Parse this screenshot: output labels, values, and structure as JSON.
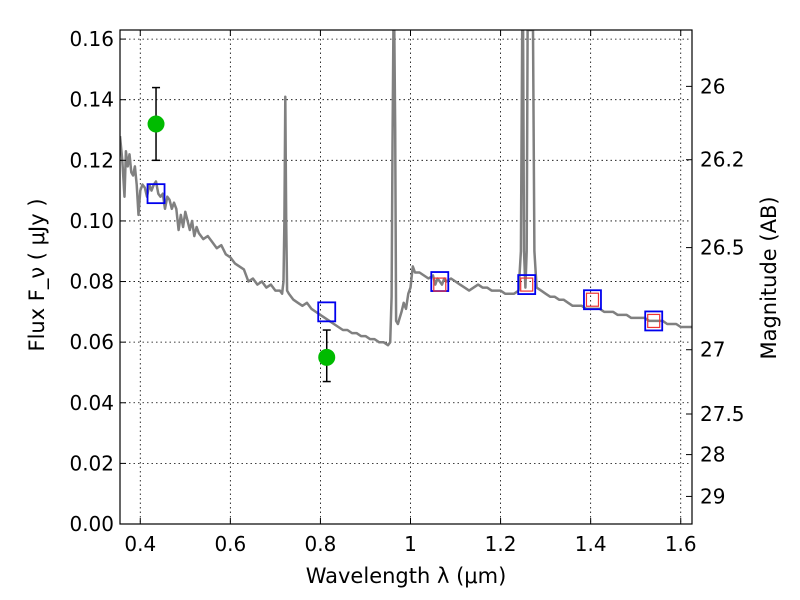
{
  "chart_data": {
    "type": "scatter",
    "title": "",
    "xlabel": "Wavelength  λ (μm)",
    "ylabel": "Flux  F_ν  ( μJy )",
    "ylabel_right": "Magnitude (AB)",
    "xlim": [
      0.355,
      1.625
    ],
    "ylim": [
      0.0,
      0.163
    ],
    "grid": true,
    "x_ticks": [
      0.4,
      0.6,
      0.8,
      1.0,
      1.2,
      1.4,
      1.6
    ],
    "x_tick_labels": [
      "0.4",
      "0.6",
      "0.8",
      "1",
      "1.2",
      "1.4",
      "1.6"
    ],
    "y_ticks": [
      0.0,
      0.02,
      0.04,
      0.06,
      0.08,
      0.1,
      0.12,
      0.14,
      0.16
    ],
    "y_tick_labels": [
      "0.00",
      "0.02",
      "0.04",
      "0.06",
      "0.08",
      "0.10",
      "0.12",
      "0.14",
      "0.16"
    ],
    "right_ticks": [
      {
        "label": "26",
        "flux": 0.1444
      },
      {
        "label": "26.2",
        "flux": 0.1202
      },
      {
        "label": "26.5",
        "flux": 0.0912
      },
      {
        "label": "27",
        "flux": 0.0575
      },
      {
        "label": "27.5",
        "flux": 0.0363
      },
      {
        "label": "28",
        "flux": 0.0229
      },
      {
        "label": "29",
        "flux": 0.0091
      }
    ],
    "series": [
      {
        "name": "model spectrum",
        "kind": "line",
        "color": "#808080",
        "points": [
          [
            0.355,
            0.128
          ],
          [
            0.36,
            0.12
          ],
          [
            0.365,
            0.108
          ],
          [
            0.368,
            0.123
          ],
          [
            0.372,
            0.118
          ],
          [
            0.376,
            0.122
          ],
          [
            0.38,
            0.116
          ],
          [
            0.384,
            0.115
          ],
          [
            0.388,
            0.118
          ],
          [
            0.392,
            0.112
          ],
          [
            0.396,
            0.102
          ],
          [
            0.4,
            0.11
          ],
          [
            0.405,
            0.112
          ],
          [
            0.41,
            0.111
          ],
          [
            0.415,
            0.108
          ],
          [
            0.42,
            0.112
          ],
          [
            0.425,
            0.11
          ],
          [
            0.43,
            0.112
          ],
          [
            0.435,
            0.113
          ],
          [
            0.44,
            0.109
          ],
          [
            0.445,
            0.108
          ],
          [
            0.45,
            0.109
          ],
          [
            0.455,
            0.104
          ],
          [
            0.46,
            0.108
          ],
          [
            0.465,
            0.107
          ],
          [
            0.47,
            0.104
          ],
          [
            0.475,
            0.106
          ],
          [
            0.48,
            0.104
          ],
          [
            0.485,
            0.097
          ],
          [
            0.49,
            0.102
          ],
          [
            0.495,
            0.098
          ],
          [
            0.5,
            0.103
          ],
          [
            0.505,
            0.1
          ],
          [
            0.51,
            0.097
          ],
          [
            0.515,
            0.1
          ],
          [
            0.52,
            0.095
          ],
          [
            0.525,
            0.098
          ],
          [
            0.53,
            0.096
          ],
          [
            0.54,
            0.094
          ],
          [
            0.55,
            0.095
          ],
          [
            0.56,
            0.093
          ],
          [
            0.57,
            0.091
          ],
          [
            0.58,
            0.092
          ],
          [
            0.59,
            0.089
          ],
          [
            0.6,
            0.088
          ],
          [
            0.61,
            0.086
          ],
          [
            0.62,
            0.085
          ],
          [
            0.63,
            0.084
          ],
          [
            0.64,
            0.08
          ],
          [
            0.65,
            0.081
          ],
          [
            0.66,
            0.079
          ],
          [
            0.67,
            0.08
          ],
          [
            0.68,
            0.078
          ],
          [
            0.69,
            0.079
          ],
          [
            0.7,
            0.077
          ],
          [
            0.71,
            0.077
          ],
          [
            0.715,
            0.076
          ],
          [
            0.718,
            0.08
          ],
          [
            0.72,
            0.1
          ],
          [
            0.722,
            0.141
          ],
          [
            0.724,
            0.1
          ],
          [
            0.726,
            0.077
          ],
          [
            0.73,
            0.076
          ],
          [
            0.74,
            0.074
          ],
          [
            0.75,
            0.073
          ],
          [
            0.76,
            0.072
          ],
          [
            0.77,
            0.073
          ],
          [
            0.78,
            0.071
          ],
          [
            0.79,
            0.07
          ],
          [
            0.8,
            0.069
          ],
          [
            0.81,
            0.068
          ],
          [
            0.82,
            0.067
          ],
          [
            0.83,
            0.066
          ],
          [
            0.84,
            0.065
          ],
          [
            0.85,
            0.064
          ],
          [
            0.86,
            0.064
          ],
          [
            0.87,
            0.063
          ],
          [
            0.88,
            0.063
          ],
          [
            0.89,
            0.062
          ],
          [
            0.9,
            0.062
          ],
          [
            0.91,
            0.061
          ],
          [
            0.92,
            0.061
          ],
          [
            0.93,
            0.06
          ],
          [
            0.94,
            0.06
          ],
          [
            0.95,
            0.059
          ],
          [
            0.955,
            0.06
          ],
          [
            0.958,
            0.075
          ],
          [
            0.96,
            0.125
          ],
          [
            0.962,
            0.163
          ],
          [
            0.964,
            0.163
          ],
          [
            0.966,
            0.13
          ],
          [
            0.968,
            0.067
          ],
          [
            0.972,
            0.066
          ],
          [
            0.976,
            0.068
          ],
          [
            0.98,
            0.07
          ],
          [
            0.985,
            0.073
          ],
          [
            0.99,
            0.071
          ],
          [
            0.995,
            0.076
          ],
          [
            1.0,
            0.078
          ],
          [
            1.005,
            0.085
          ],
          [
            1.01,
            0.083
          ],
          [
            1.02,
            0.083
          ],
          [
            1.03,
            0.082
          ],
          [
            1.04,
            0.081
          ],
          [
            1.05,
            0.082
          ],
          [
            1.055,
            0.079
          ],
          [
            1.06,
            0.081
          ],
          [
            1.065,
            0.08
          ],
          [
            1.07,
            0.079
          ],
          [
            1.075,
            0.081
          ],
          [
            1.08,
            0.08
          ],
          [
            1.09,
            0.081
          ],
          [
            1.1,
            0.08
          ],
          [
            1.11,
            0.079
          ],
          [
            1.12,
            0.078
          ],
          [
            1.13,
            0.077
          ],
          [
            1.14,
            0.078
          ],
          [
            1.15,
            0.079
          ],
          [
            1.16,
            0.078
          ],
          [
            1.17,
            0.078
          ],
          [
            1.18,
            0.077
          ],
          [
            1.19,
            0.077
          ],
          [
            1.2,
            0.077
          ],
          [
            1.21,
            0.076
          ],
          [
            1.22,
            0.076
          ],
          [
            1.23,
            0.076
          ],
          [
            1.24,
            0.077
          ],
          [
            1.245,
            0.09
          ],
          [
            1.248,
            0.163
          ],
          [
            1.25,
            0.163
          ],
          [
            1.252,
            0.09
          ],
          [
            1.255,
            0.078
          ],
          [
            1.258,
            0.09
          ],
          [
            1.26,
            0.163
          ],
          [
            1.272,
            0.163
          ],
          [
            1.275,
            0.09
          ],
          [
            1.28,
            0.078
          ],
          [
            1.29,
            0.077
          ],
          [
            1.3,
            0.076
          ],
          [
            1.31,
            0.075
          ],
          [
            1.32,
            0.075
          ],
          [
            1.33,
            0.074
          ],
          [
            1.34,
            0.074
          ],
          [
            1.35,
            0.073
          ],
          [
            1.36,
            0.072
          ],
          [
            1.37,
            0.072
          ],
          [
            1.38,
            0.072
          ],
          [
            1.39,
            0.071
          ],
          [
            1.4,
            0.071
          ],
          [
            1.41,
            0.071
          ],
          [
            1.42,
            0.071
          ],
          [
            1.43,
            0.07
          ],
          [
            1.44,
            0.07
          ],
          [
            1.45,
            0.07
          ],
          [
            1.46,
            0.069
          ],
          [
            1.47,
            0.069
          ],
          [
            1.48,
            0.069
          ],
          [
            1.49,
            0.068
          ],
          [
            1.5,
            0.068
          ],
          [
            1.51,
            0.068
          ],
          [
            1.52,
            0.068
          ],
          [
            1.53,
            0.067
          ],
          [
            1.54,
            0.067
          ],
          [
            1.55,
            0.067
          ],
          [
            1.56,
            0.067
          ],
          [
            1.57,
            0.066
          ],
          [
            1.58,
            0.066
          ],
          [
            1.59,
            0.066
          ],
          [
            1.6,
            0.065
          ],
          [
            1.61,
            0.065
          ],
          [
            1.625,
            0.065
          ]
        ]
      },
      {
        "name": "model photometry (blue squares)",
        "kind": "square",
        "color": "#0000ee",
        "points": [
          [
            0.435,
            0.109
          ],
          [
            0.814,
            0.07
          ],
          [
            1.065,
            0.08
          ],
          [
            1.258,
            0.079
          ],
          [
            1.404,
            0.074
          ],
          [
            1.54,
            0.067
          ]
        ]
      },
      {
        "name": "measured photometry (red squares)",
        "kind": "square_small",
        "color": "#ee3333",
        "points": [
          [
            1.065,
            0.079
          ],
          [
            1.258,
            0.079
          ],
          [
            1.404,
            0.074
          ],
          [
            1.54,
            0.067
          ]
        ]
      },
      {
        "name": "HST photometry (green points)",
        "kind": "point_error",
        "color": "#00bb00",
        "points": [
          {
            "x": 0.435,
            "y": 0.132,
            "yerr_low": 0.12,
            "yerr_high": 0.144
          },
          {
            "x": 0.814,
            "y": 0.055,
            "yerr_low": 0.047,
            "yerr_high": 0.064
          }
        ]
      }
    ]
  }
}
